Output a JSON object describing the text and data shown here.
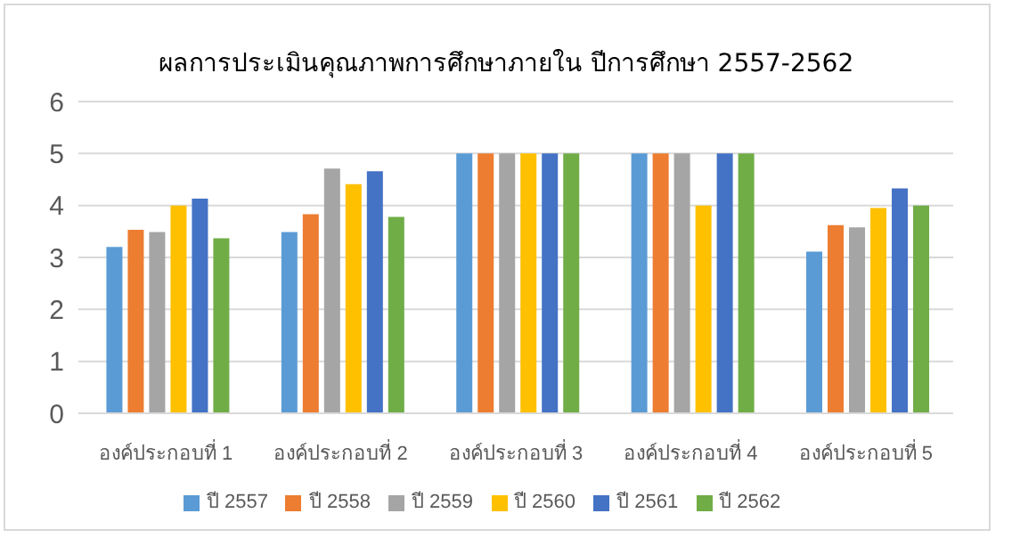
{
  "chart_data": {
    "type": "bar",
    "title": "ผลการประเมินคุณภาพการศึกษาภายใน  ปีการศึกษา  2557-2562",
    "categories": [
      "องค์ประกอบที่ 1",
      "องค์ประกอบที่ 2",
      "องค์ประกอบที่ 3",
      "องค์ประกอบที่ 4",
      "องค์ประกอบที่ 5"
    ],
    "series": [
      {
        "name": "ปี 2557",
        "color": "#5b9bd5",
        "values": [
          3.2,
          3.49,
          5,
          5,
          3.11
        ]
      },
      {
        "name": "ปี 2558",
        "color": "#ed7d31",
        "values": [
          3.53,
          3.83,
          5,
          5,
          3.62
        ]
      },
      {
        "name": "ปี 2559",
        "color": "#a5a5a5",
        "values": [
          3.49,
          4.71,
          5,
          5,
          3.58
        ]
      },
      {
        "name": "ปี 2560",
        "color": "#ffc000",
        "values": [
          4,
          4.41,
          5,
          4,
          3.95
        ]
      },
      {
        "name": "ปี 2561",
        "color": "#4472c4",
        "values": [
          4.13,
          4.66,
          5,
          5,
          4.33
        ]
      },
      {
        "name": "ปี 2562",
        "color": "#70ad47",
        "values": [
          3.37,
          3.78,
          5,
          5,
          4
        ]
      }
    ],
    "ylim": [
      0,
      6
    ],
    "yticks": [
      0,
      1,
      2,
      3,
      4,
      5,
      6
    ],
    "grid": "y",
    "legend": "bottom"
  }
}
